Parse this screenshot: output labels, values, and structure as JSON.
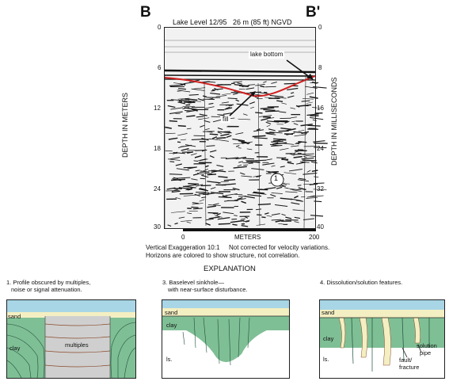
{
  "header": {
    "left_letter": "B",
    "right_letter": "B'",
    "lake_level": "Lake Level 12/95",
    "ngvd": "26 m (85 ft) NGVD"
  },
  "axes": {
    "left_label": "DEPTH IN METERS",
    "right_label": "DEPTH IN MILLISECONDS",
    "left_ticks": [
      "0",
      "6",
      "12",
      "18",
      "24",
      "30"
    ],
    "right_ticks": [
      "0",
      "8",
      "16",
      "24",
      "32",
      "40"
    ],
    "scale_ticks": [
      "0",
      "200"
    ],
    "scale_label": "METERS"
  },
  "annotations": {
    "lake_bottom": "lake bottom",
    "fill": "fill",
    "feature_number": "1"
  },
  "notes": {
    "line1a": "Vertical Exaggeration 10:1",
    "line1b": "Not corrected for velocity variations.",
    "line2": "Horizons are colored to show structure, not correlation."
  },
  "explanation": {
    "title": "EXPLANATION",
    "panel1": {
      "caption1": "1. Profile obscured by multiples,",
      "caption2": "noise or signal attenuation.",
      "sand": "sand",
      "clay": "clay",
      "multiples": "multiples"
    },
    "panel2": {
      "caption1": "3. Baselevel sinkhole—",
      "caption2": "with near-surface disturbance.",
      "sand": "sand",
      "clay": "clay",
      "ls": "ls."
    },
    "panel3": {
      "caption1": "4. Dissolution/solution features.",
      "sand": "sand",
      "clay": "clay",
      "ls": "ls.",
      "fault1": "fault/",
      "fault2": "fracture",
      "solution1": "solution",
      "solution2": "pipe"
    }
  },
  "colors": {
    "horizon": "#d02020",
    "sand": "#f4efc2",
    "clay": "#7fbf95",
    "clay_dark": "#5c9f77",
    "water": "#a8d6e6",
    "multiples_fill": "#cfcfcf",
    "brown_line": "#8a4a2a"
  }
}
